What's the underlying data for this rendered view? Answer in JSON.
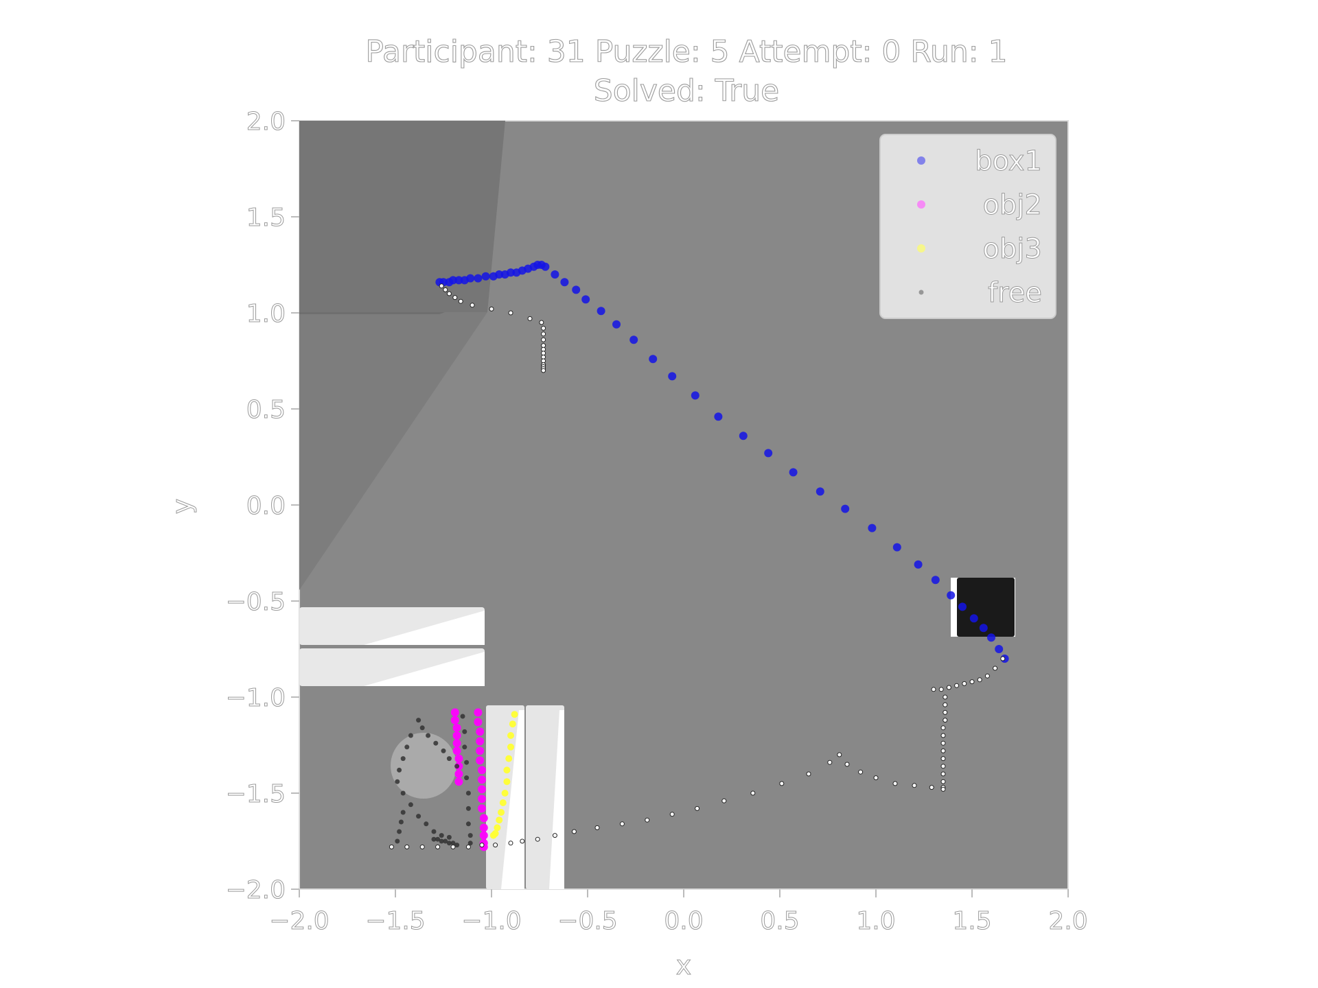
{
  "chart_data": {
    "type": "scatter",
    "title": "Participant: 31 Puzzle: 5 Attempt: 0 Run: 1",
    "subtitle": "Solved: True",
    "xlabel": "x",
    "ylabel": "y",
    "xlim": [
      -2.0,
      2.0
    ],
    "ylim": [
      -2.0,
      2.0
    ],
    "xticks": [
      "−2.0",
      "−1.5",
      "−1.0",
      "−0.5",
      "0.0",
      "0.5",
      "1.0",
      "1.5",
      "2.0"
    ],
    "yticks": [
      "2.0",
      "1.5",
      "1.0",
      "0.5",
      "0.0",
      "−0.5",
      "−1.0",
      "−1.5",
      "−2.0"
    ],
    "legend_position": "top-right",
    "colors": {
      "box1": "#0000ee",
      "obj2": "#ff00ff",
      "obj3": "#ffff33",
      "free": "#ffffff",
      "background": "#888888"
    },
    "series": [
      {
        "name": "box1",
        "x": [
          -1.27,
          -1.25,
          -1.22,
          -1.2,
          -1.17,
          -1.14,
          -1.11,
          -1.07,
          -1.03,
          -0.99,
          -0.96,
          -0.93,
          -0.9,
          -0.87,
          -0.84,
          -0.81,
          -0.78,
          -0.76,
          -0.74,
          -0.72,
          -0.67,
          -0.62,
          -0.56,
          -0.51,
          -0.43,
          -0.35,
          -0.26,
          -0.16,
          -0.06,
          0.06,
          0.18,
          0.31,
          0.44,
          0.57,
          0.71,
          0.84,
          0.98,
          1.11,
          1.22,
          1.31,
          1.39,
          1.45,
          1.51,
          1.56,
          1.6,
          1.64,
          1.67
        ],
        "y": [
          1.16,
          1.16,
          1.16,
          1.17,
          1.17,
          1.17,
          1.18,
          1.18,
          1.19,
          1.19,
          1.2,
          1.2,
          1.21,
          1.21,
          1.22,
          1.23,
          1.24,
          1.25,
          1.25,
          1.24,
          1.2,
          1.16,
          1.12,
          1.07,
          1.01,
          0.94,
          0.86,
          0.76,
          0.67,
          0.57,
          0.46,
          0.36,
          0.27,
          0.17,
          0.07,
          -0.02,
          -0.12,
          -0.22,
          -0.31,
          -0.39,
          -0.47,
          -0.53,
          -0.59,
          -0.64,
          -0.69,
          -0.75,
          -0.8
        ]
      },
      {
        "name": "obj2",
        "x": [
          -1.19,
          -1.19,
          -1.18,
          -1.18,
          -1.18,
          -1.18,
          -1.17,
          -1.17,
          -1.17,
          -1.17,
          -1.07,
          -1.07,
          -1.06,
          -1.06,
          -1.06,
          -1.06,
          -1.05,
          -1.05,
          -1.05,
          -1.05,
          -1.05,
          -1.04,
          -1.04,
          -1.04,
          -1.04,
          -1.04
        ],
        "y": [
          -1.08,
          -1.12,
          -1.16,
          -1.2,
          -1.24,
          -1.28,
          -1.32,
          -1.36,
          -1.4,
          -1.44,
          -1.08,
          -1.13,
          -1.18,
          -1.23,
          -1.28,
          -1.33,
          -1.38,
          -1.43,
          -1.48,
          -1.53,
          -1.58,
          -1.63,
          -1.68,
          -1.72,
          -1.76,
          -1.78
        ]
      },
      {
        "name": "obj3",
        "x": [
          -0.88,
          -0.89,
          -0.9,
          -0.9,
          -0.91,
          -0.92,
          -0.92,
          -0.93,
          -0.94,
          -0.95,
          -0.96,
          -0.97,
          -0.98,
          -0.99
        ],
        "y": [
          -1.09,
          -1.14,
          -1.2,
          -1.26,
          -1.32,
          -1.38,
          -1.44,
          -1.5,
          -1.55,
          -1.6,
          -1.64,
          -1.68,
          -1.71,
          -1.72
        ]
      },
      {
        "name": "free",
        "x": [
          -1.26,
          -1.24,
          -1.22,
          -1.19,
          -1.16,
          -1.1,
          -1.0,
          -0.9,
          -0.8,
          -0.74,
          -0.73,
          -0.73,
          -0.73,
          -0.73,
          -0.73,
          -0.73,
          -0.73,
          -0.73,
          -0.73,
          -0.73,
          -0.73,
          -0.73,
          1.66,
          1.62,
          1.58,
          1.54,
          1.5,
          1.46,
          1.42,
          1.38,
          1.34,
          1.3,
          1.36,
          1.36,
          1.36,
          1.36,
          1.35,
          1.35,
          1.35,
          1.35,
          1.35,
          1.35,
          1.35,
          1.35,
          1.35,
          1.35,
          1.29,
          1.2,
          1.1,
          1.0,
          0.92,
          0.85,
          0.81,
          0.76,
          0.65,
          0.51,
          0.36,
          0.21,
          0.07,
          -0.06,
          -0.19,
          -0.32,
          -0.45,
          -0.57,
          -0.67,
          -0.76,
          -0.84,
          -0.9,
          -0.98,
          -1.05,
          -1.12,
          -1.2,
          -1.28,
          -1.36,
          -1.44,
          -1.52
        ],
        "y": [
          1.14,
          1.12,
          1.1,
          1.08,
          1.06,
          1.04,
          1.02,
          1.0,
          0.97,
          0.95,
          0.92,
          0.89,
          0.86,
          0.83,
          0.81,
          0.79,
          0.77,
          0.75,
          0.73,
          0.72,
          0.71,
          0.7,
          -0.8,
          -0.85,
          -0.89,
          -0.91,
          -0.92,
          -0.93,
          -0.94,
          -0.95,
          -0.96,
          -0.96,
          -1.0,
          -1.04,
          -1.08,
          -1.12,
          -1.16,
          -1.2,
          -1.24,
          -1.28,
          -1.32,
          -1.36,
          -1.4,
          -1.44,
          -1.47,
          -1.48,
          -1.47,
          -1.46,
          -1.45,
          -1.42,
          -1.39,
          -1.35,
          -1.3,
          -1.34,
          -1.4,
          -1.45,
          -1.5,
          -1.54,
          -1.58,
          -1.61,
          -1.64,
          -1.66,
          -1.68,
          -1.7,
          -1.72,
          -1.74,
          -1.75,
          -1.76,
          -1.77,
          -1.77,
          -1.78,
          -1.78,
          -1.78,
          -1.78,
          -1.78,
          -1.78
        ]
      },
      {
        "name": "",
        "x": [
          -1.38,
          -1.36,
          -1.33,
          -1.29,
          -1.25,
          -1.22,
          -1.18,
          -1.42,
          -1.44,
          -1.46,
          -1.48,
          -1.49,
          -1.46,
          -1.42,
          -1.38,
          -1.34,
          -1.3,
          -1.26,
          -1.22,
          -1.15,
          -1.14,
          -1.14,
          -1.13,
          -1.13,
          -1.12,
          -1.12,
          -1.12,
          -1.11,
          -1.11,
          -1.46,
          -1.47,
          -1.48,
          -1.49,
          -1.3,
          -1.28,
          -1.26,
          -1.24,
          -1.22,
          -1.2,
          -1.18
        ],
        "y": [
          -1.12,
          -1.16,
          -1.2,
          -1.24,
          -1.28,
          -1.32,
          -1.36,
          -1.2,
          -1.26,
          -1.32,
          -1.38,
          -1.44,
          -1.5,
          -1.56,
          -1.62,
          -1.66,
          -1.7,
          -1.72,
          -1.73,
          -1.1,
          -1.18,
          -1.26,
          -1.34,
          -1.42,
          -1.5,
          -1.58,
          -1.66,
          -1.72,
          -1.76,
          -1.6,
          -1.65,
          -1.7,
          -1.75,
          -1.74,
          -1.74,
          -1.75,
          -1.75,
          -1.76,
          -1.76,
          -1.77
        ]
      }
    ]
  },
  "legend": [
    {
      "label": "box1",
      "color": "#5a5aee"
    },
    {
      "label": "obj2",
      "color": "#ff66ff"
    },
    {
      "label": "obj3",
      "color": "#ffff66"
    },
    {
      "label": "free",
      "color": "#777777"
    }
  ]
}
